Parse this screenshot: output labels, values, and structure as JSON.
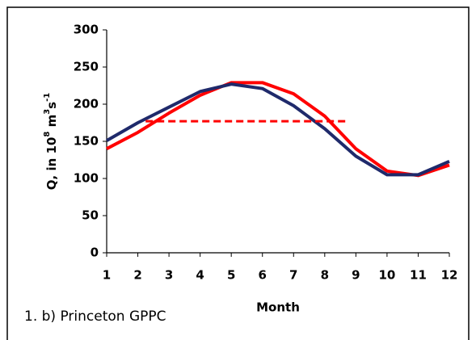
{
  "chart_data": {
    "type": "line",
    "x_label": "Month",
    "y_label_parts": [
      "Q, in 10",
      "8",
      " m",
      "3",
      "s",
      "-1"
    ],
    "annotation": "1. b) Princeton GPPC",
    "x": [
      1,
      2,
      3,
      4,
      5,
      6,
      7,
      8,
      9,
      10,
      11,
      12
    ],
    "series": [
      {
        "color": "#ff0000",
        "values": [
          140,
          162,
          188,
          212,
          229,
          229,
          214,
          184,
          140,
          110,
          104,
          118
        ]
      },
      {
        "color": "#1f2a6b",
        "values": [
          151,
          175,
          196,
          217,
          227,
          221,
          198,
          167,
          130,
          105,
          105,
          123
        ]
      }
    ],
    "reference_line": {
      "color": "#ff0000",
      "dashed": true,
      "x": [
        2.25,
        8.7
      ],
      "values": [
        177,
        177
      ]
    },
    "xlim": [
      1,
      12
    ],
    "xticks": [
      1,
      2,
      3,
      4,
      5,
      6,
      7,
      8,
      9,
      10,
      11,
      12
    ],
    "ylim": [
      0,
      300
    ],
    "yticks": [
      0,
      50,
      100,
      150,
      200,
      250,
      300
    ],
    "grid": false
  }
}
